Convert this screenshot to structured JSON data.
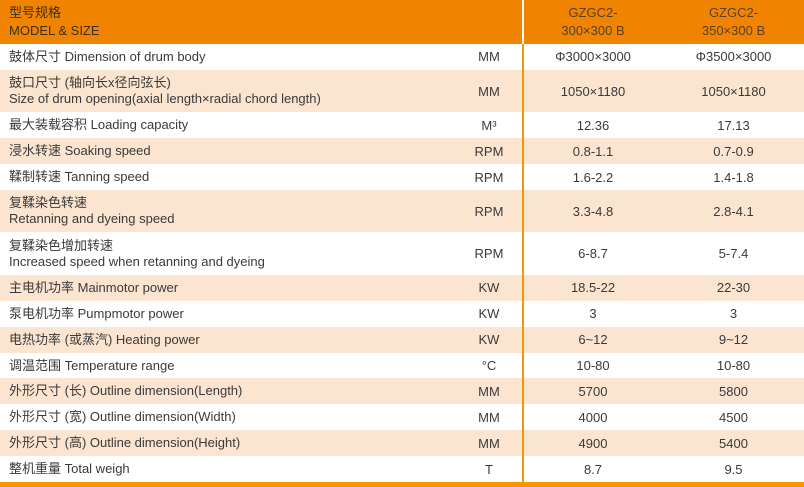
{
  "colors": {
    "header_bg": "#F08300",
    "row_alt_bg": "#FBE4D0",
    "divider_line": "#F39800",
    "header_text": "#3F2F1A",
    "model_text": "#5A4126",
    "body_text": "#3A3A3A"
  },
  "header": {
    "model_size_zh": "型号规格",
    "model_size_en": "MODEL & SIZE",
    "columns": [
      {
        "line1": "GZGC2-",
        "line2": "300×300 B"
      },
      {
        "line1": "GZGC2-",
        "line2": "350×300 B"
      }
    ]
  },
  "rows": [
    {
      "zh": "鼓体尺寸",
      "en": "Dimension of drum body",
      "two": false,
      "unit": "MM",
      "values": [
        "Φ3000×3000",
        "Φ3500×3000"
      ]
    },
    {
      "zh": "鼓口尺寸 (轴向长x径向弦长)",
      "en": "Size of drum opening(axial length×radial chord length)",
      "two": true,
      "unit": "MM",
      "values": [
        "1050×1180",
        "1050×1180"
      ]
    },
    {
      "zh": "最大装载容积",
      "en": "Loading capacity",
      "two": false,
      "unit": "M³",
      "values": [
        "12.36",
        "17.13"
      ]
    },
    {
      "zh": "浸水转速",
      "en": "Soaking speed",
      "two": false,
      "unit": "RPM",
      "values": [
        "0.8-1.1",
        "0.7-0.9"
      ]
    },
    {
      "zh": "鞣制转速",
      "en": "Tanning speed",
      "two": false,
      "unit": "RPM",
      "values": [
        "1.6-2.2",
        "1.4-1.8"
      ]
    },
    {
      "zh": "复鞣染色转速",
      "en": "Retanning and dyeing speed",
      "two": true,
      "unit": "RPM",
      "values": [
        "3.3-4.8",
        "2.8-4.1"
      ]
    },
    {
      "zh": "复鞣染色增加转速",
      "en": "Increased speed when retanning and dyeing",
      "two": true,
      "unit": "RPM",
      "values": [
        "6-8.7",
        "5-7.4"
      ]
    },
    {
      "zh": "主电机功率",
      "en": "Mainmotor power",
      "two": false,
      "unit": "KW",
      "values": [
        "18.5-22",
        "22-30"
      ]
    },
    {
      "zh": "泵电机功率",
      "en": "Pumpmotor power",
      "two": false,
      "unit": "KW",
      "values": [
        "3",
        "3"
      ]
    },
    {
      "zh": "电热功率 (或蒸汽)",
      "en": "Heating power",
      "two": false,
      "unit": "KW",
      "values": [
        "6~12",
        "9~12"
      ]
    },
    {
      "zh": "调温范围",
      "en": "Temperature range",
      "two": false,
      "unit": "°C",
      "values": [
        "10-80",
        "10-80"
      ]
    },
    {
      "zh": "外形尺寸 (长)",
      "en": "Outline dimension(Length)",
      "two": false,
      "unit": "MM",
      "values": [
        "5700",
        "5800"
      ]
    },
    {
      "zh": "外形尺寸 (宽)",
      "en": "Outline dimension(Width)",
      "two": false,
      "unit": "MM",
      "values": [
        "4000",
        "4500"
      ]
    },
    {
      "zh": "外形尺寸 (高)",
      "en": "Outline dimension(Height)",
      "two": false,
      "unit": "MM",
      "values": [
        "4900",
        "5400"
      ]
    },
    {
      "zh": "整机重量",
      "en": "Total weigh",
      "two": false,
      "unit": "T",
      "values": [
        "8.7",
        "9.5"
      ]
    }
  ]
}
